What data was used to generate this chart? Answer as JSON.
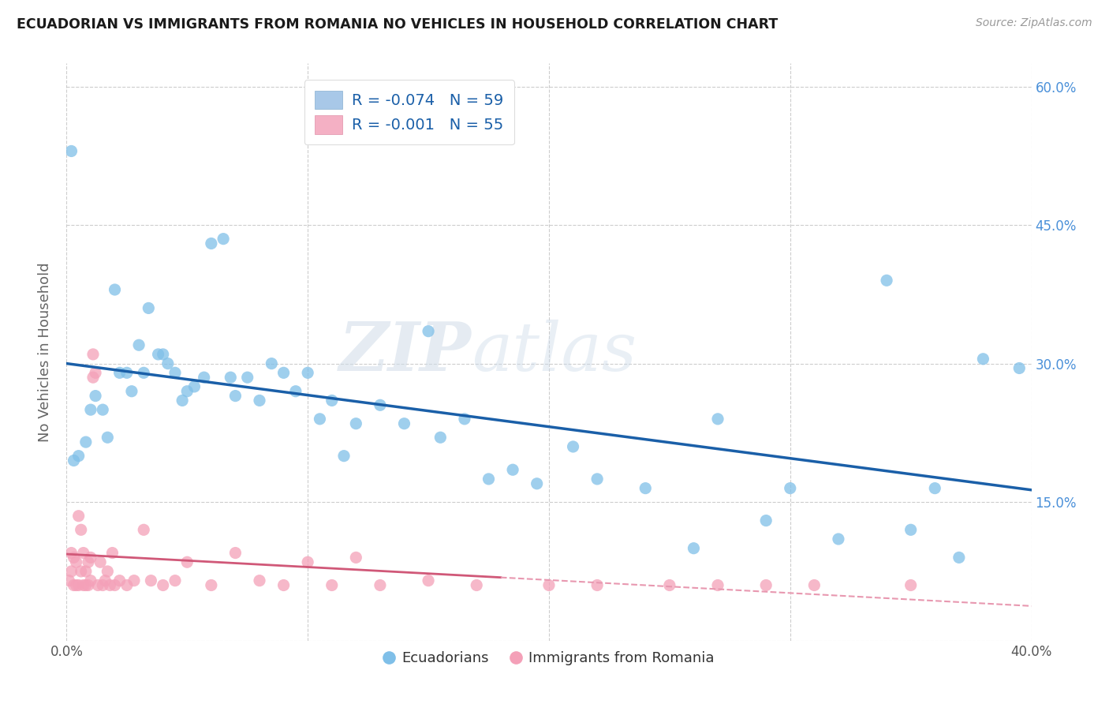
{
  "title": "ECUADORIAN VS IMMIGRANTS FROM ROMANIA NO VEHICLES IN HOUSEHOLD CORRELATION CHART",
  "source": "Source: ZipAtlas.com",
  "ylabel": "No Vehicles in Household",
  "x_min": 0.0,
  "x_max": 0.4,
  "y_min": 0.0,
  "y_max": 0.625,
  "ecuadorians_x": [
    0.002,
    0.003,
    0.005,
    0.008,
    0.01,
    0.012,
    0.015,
    0.017,
    0.02,
    0.022,
    0.025,
    0.027,
    0.03,
    0.032,
    0.034,
    0.038,
    0.04,
    0.042,
    0.045,
    0.048,
    0.05,
    0.053,
    0.057,
    0.06,
    0.065,
    0.068,
    0.07,
    0.075,
    0.08,
    0.085,
    0.09,
    0.095,
    0.1,
    0.105,
    0.11,
    0.115,
    0.12,
    0.13,
    0.14,
    0.15,
    0.155,
    0.165,
    0.175,
    0.185,
    0.195,
    0.21,
    0.22,
    0.24,
    0.26,
    0.27,
    0.29,
    0.3,
    0.32,
    0.34,
    0.35,
    0.36,
    0.37,
    0.38,
    0.395
  ],
  "ecuadorians_y": [
    0.53,
    0.195,
    0.2,
    0.215,
    0.25,
    0.265,
    0.25,
    0.22,
    0.38,
    0.29,
    0.29,
    0.27,
    0.32,
    0.29,
    0.36,
    0.31,
    0.31,
    0.3,
    0.29,
    0.26,
    0.27,
    0.275,
    0.285,
    0.43,
    0.435,
    0.285,
    0.265,
    0.285,
    0.26,
    0.3,
    0.29,
    0.27,
    0.29,
    0.24,
    0.26,
    0.2,
    0.235,
    0.255,
    0.235,
    0.335,
    0.22,
    0.24,
    0.175,
    0.185,
    0.17,
    0.21,
    0.175,
    0.165,
    0.1,
    0.24,
    0.13,
    0.165,
    0.11,
    0.39,
    0.12,
    0.165,
    0.09,
    0.305,
    0.295
  ],
  "romania_x": [
    0.001,
    0.002,
    0.002,
    0.003,
    0.003,
    0.004,
    0.004,
    0.005,
    0.005,
    0.006,
    0.006,
    0.007,
    0.007,
    0.008,
    0.008,
    0.009,
    0.009,
    0.01,
    0.01,
    0.011,
    0.011,
    0.012,
    0.013,
    0.014,
    0.015,
    0.016,
    0.017,
    0.018,
    0.019,
    0.02,
    0.022,
    0.025,
    0.028,
    0.032,
    0.035,
    0.04,
    0.045,
    0.05,
    0.06,
    0.07,
    0.08,
    0.09,
    0.1,
    0.11,
    0.12,
    0.13,
    0.15,
    0.17,
    0.2,
    0.22,
    0.25,
    0.27,
    0.29,
    0.31,
    0.35
  ],
  "romania_y": [
    0.065,
    0.095,
    0.075,
    0.06,
    0.09,
    0.06,
    0.085,
    0.06,
    0.135,
    0.075,
    0.12,
    0.06,
    0.095,
    0.06,
    0.075,
    0.085,
    0.06,
    0.065,
    0.09,
    0.285,
    0.31,
    0.29,
    0.06,
    0.085,
    0.06,
    0.065,
    0.075,
    0.06,
    0.095,
    0.06,
    0.065,
    0.06,
    0.065,
    0.12,
    0.065,
    0.06,
    0.065,
    0.085,
    0.06,
    0.095,
    0.065,
    0.06,
    0.085,
    0.06,
    0.09,
    0.06,
    0.065,
    0.06,
    0.06,
    0.06,
    0.06,
    0.06,
    0.06,
    0.06,
    0.06
  ],
  "blue_scatter_color": "#7fbfe8",
  "pink_scatter_color": "#f4a0b8",
  "blue_line_color": "#1a5fa8",
  "pink_line_solid_color": "#d05878",
  "pink_line_dash_color": "#e898b0",
  "background_color": "#ffffff",
  "grid_color": "#c8c8c8",
  "watermark_zip": "ZIP",
  "watermark_atlas": "atlas",
  "legend_ecuadorian_label": "Ecuadorians",
  "legend_romania_label": "Immigrants from Romania",
  "legend_r1": "R = ",
  "legend_r1_val": "-0.074",
  "legend_n1": "  N = ",
  "legend_n1_val": "59",
  "legend_r2_val": "-0.001",
  "legend_n2_val": "55"
}
